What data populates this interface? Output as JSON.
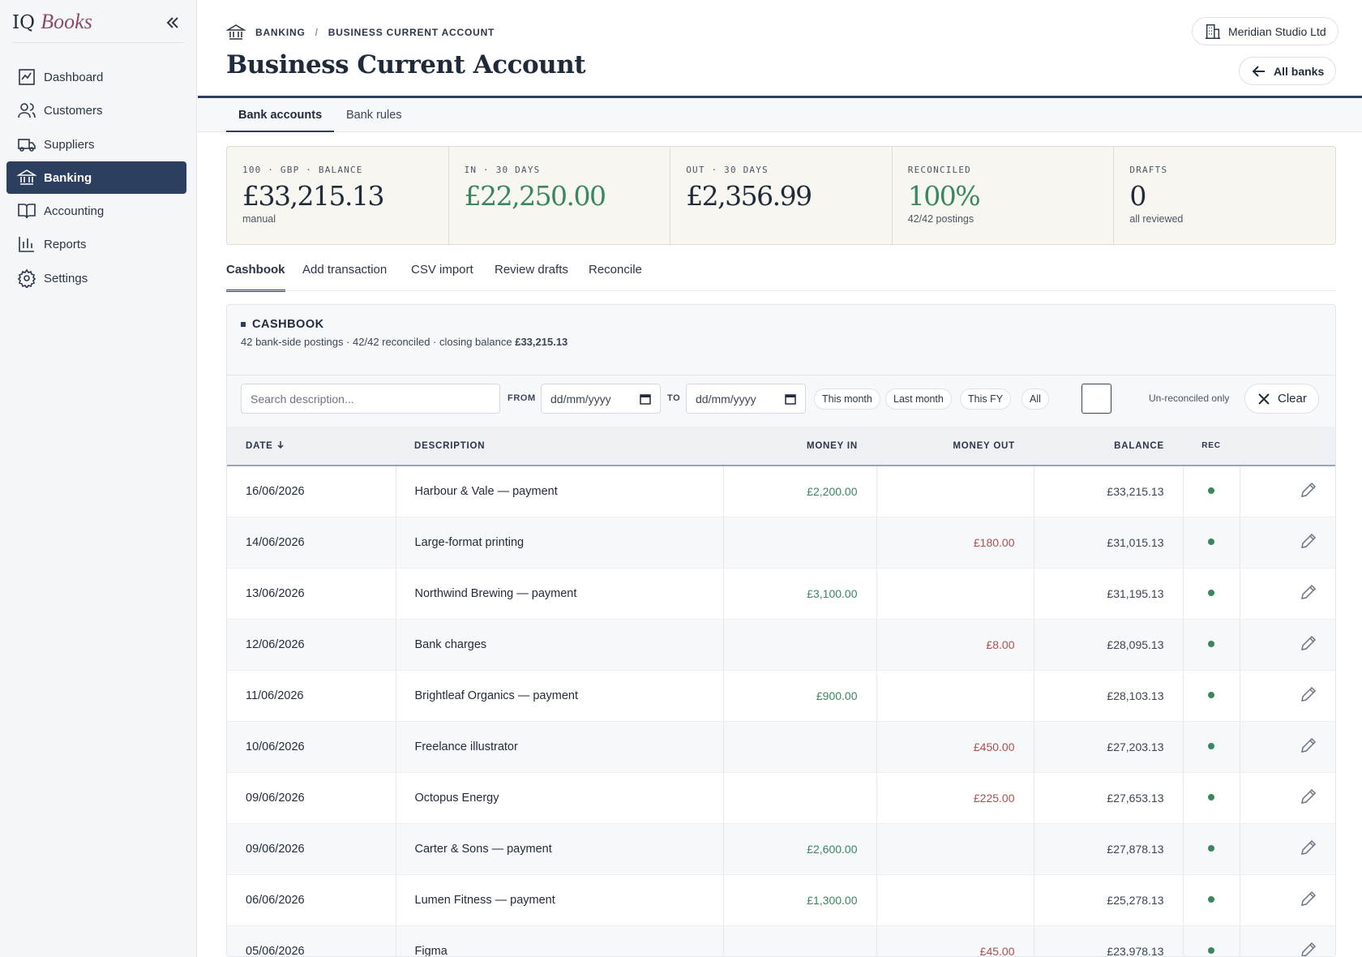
{
  "sidebar": {
    "logo_brand": "IQ",
    "logo_name": "Books",
    "nav": [
      "Dashboard",
      "Customers",
      "Suppliers",
      "Banking",
      "Accounting",
      "Reports",
      "Settings"
    ]
  },
  "header": {
    "breadcrumb": [
      "BANKING",
      "/",
      "BUSINESS CURRENT ACCOUNT"
    ],
    "title": "Business Current Account",
    "company": "Meridian Studio Ltd",
    "back": "All banks"
  },
  "tabs": [
    "Bank accounts",
    "Bank rules"
  ],
  "stats": [
    {
      "label": "100 · GBP · BALANCE",
      "value": "£33,215.13",
      "note": "manual"
    },
    {
      "label": "IN · 30 DAYS",
      "value": "£22,250.00"
    },
    {
      "label": "OUT · 30 DAYS",
      "value": "£2,356.99"
    },
    {
      "label": "RECONCILED",
      "value": "100%",
      "note": "42/42 postings"
    },
    {
      "label": "DRAFTS",
      "value": "0",
      "note": "all reviewed"
    }
  ],
  "subtabs": [
    "Cashbook",
    "Add transaction",
    "CSV import",
    "Review drafts",
    "Reconcile"
  ],
  "cashbook": {
    "title": "CASHBOOK",
    "subtitle": "42 bank-side postings · 42/42 reconciled · closing balance",
    "closing_balance": "£33,215.13"
  },
  "filters": {
    "search": "Search description...",
    "from": "FROM",
    "from_value": "dd/mm/yyyy",
    "to": "TO",
    "to_value": "dd/mm/yyyy",
    "presets": [
      "This month",
      "Last month",
      "This FY",
      "All"
    ],
    "unreconciled": "Un-reconciled only",
    "clear": "Clear"
  },
  "table": {
    "headers": [
      "DATE",
      "DESCRIPTION",
      "MONEY IN",
      "MONEY OUT",
      "BALANCE",
      "REC"
    ],
    "rows": [
      [
        "16/06/2026",
        "Harbour & Vale — payment",
        "£2,200.00",
        null,
        "£33,215.13"
      ],
      [
        "14/06/2026",
        "Large-format printing",
        null,
        "£180.00",
        "£31,015.13"
      ],
      [
        "13/06/2026",
        "Northwind Brewing — payment",
        "£3,100.00",
        null,
        "£31,195.13"
      ],
      [
        "12/06/2026",
        "Bank charges",
        null,
        "£8.00",
        "£28,095.13"
      ],
      [
        "11/06/2026",
        "Brightleaf Organics — payment",
        "£900.00",
        null,
        "£28,103.13"
      ],
      [
        "10/06/2026",
        "Freelance illustrator",
        null,
        "£450.00",
        "£27,203.13"
      ],
      [
        "09/06/2026",
        "Octopus Energy",
        null,
        "£225.00",
        "£27,653.13"
      ],
      [
        "09/06/2026",
        "Carter & Sons — payment",
        "£2,600.00",
        null,
        "£27,878.13"
      ],
      [
        "06/06/2026",
        "Lumen Fitness — payment",
        "£1,300.00",
        null,
        "£25,278.13"
      ],
      [
        "05/06/2026",
        "Figma",
        null,
        "£45.00",
        "£23,978.13"
      ]
    ]
  }
}
